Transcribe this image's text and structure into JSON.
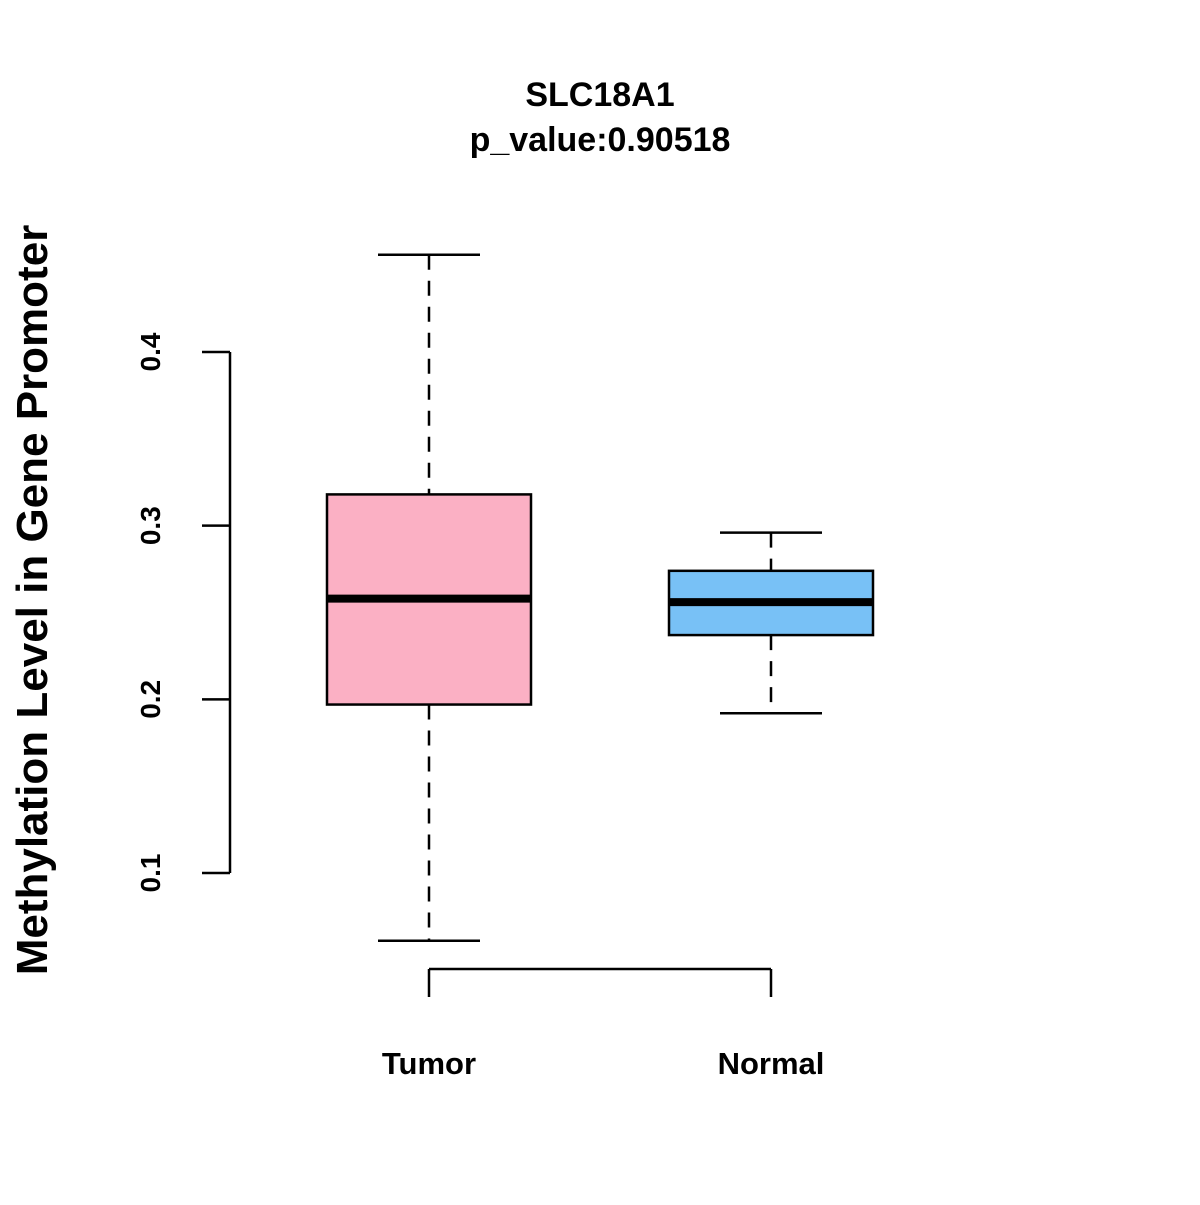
{
  "chart_data": {
    "type": "boxplot",
    "title": "SLC18A1",
    "subtitle": "p_value:0.90518",
    "xlabel": "",
    "ylabel": "Methylation Level in Gene Promoter",
    "ylim": [
      0.04,
      0.47
    ],
    "yticks": [
      0.1,
      0.2,
      0.3,
      0.4
    ],
    "ytick_labels": [
      "0.1",
      "0.2",
      "0.3",
      "0.4"
    ],
    "categories": [
      "Tumor",
      "Normal"
    ],
    "boxes": [
      {
        "name": "Tumor",
        "whisker_low": 0.061,
        "q1": 0.197,
        "median": 0.258,
        "q3": 0.318,
        "whisker_high": 0.456,
        "color": "#FBB0C4"
      },
      {
        "name": "Normal",
        "whisker_low": 0.192,
        "q1": 0.237,
        "median": 0.256,
        "q3": 0.274,
        "whisker_high": 0.296,
        "color": "#78C1F6"
      }
    ]
  }
}
